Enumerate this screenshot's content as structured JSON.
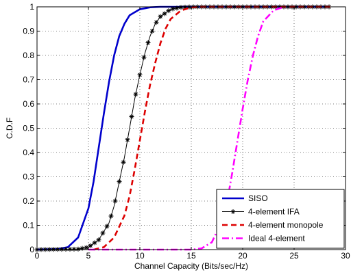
{
  "chart_data": {
    "type": "line",
    "xlabel": "Channel Capacity (Bits/sec/Hz)",
    "ylabel": "C.D.F",
    "xlim": [
      0,
      30
    ],
    "ylim": [
      0,
      1
    ],
    "xticks": [
      0,
      5,
      10,
      15,
      20,
      25,
      30
    ],
    "yticks": [
      0,
      0.1,
      0.2,
      0.3,
      0.4,
      0.5,
      0.6,
      0.7,
      0.8,
      0.9,
      1
    ],
    "grid": true,
    "legend_position": "bottom-right",
    "series": [
      {
        "name": "SISO",
        "color": "#0000cc",
        "style": "solid-thick",
        "points": [
          [
            0,
            0
          ],
          [
            2,
            0.002
          ],
          [
            3,
            0.01
          ],
          [
            4,
            0.05
          ],
          [
            5,
            0.17
          ],
          [
            5.5,
            0.28
          ],
          [
            6,
            0.42
          ],
          [
            6.5,
            0.56
          ],
          [
            7,
            0.69
          ],
          [
            7.5,
            0.8
          ],
          [
            8,
            0.88
          ],
          [
            8.5,
            0.93
          ],
          [
            9,
            0.965
          ],
          [
            10,
            0.99
          ],
          [
            11,
            0.998
          ],
          [
            12,
            1
          ],
          [
            28.5,
            1
          ]
        ]
      },
      {
        "name": "4-element IFA",
        "color": "#000000",
        "style": "solid-star",
        "points": [
          [
            0,
            0
          ],
          [
            4,
            0.002
          ],
          [
            5,
            0.01
          ],
          [
            6,
            0.04
          ],
          [
            7,
            0.11
          ],
          [
            7.5,
            0.18
          ],
          [
            8,
            0.28
          ],
          [
            8.5,
            0.38
          ],
          [
            9,
            0.5
          ],
          [
            9.5,
            0.62
          ],
          [
            10,
            0.72
          ],
          [
            10.5,
            0.81
          ],
          [
            11,
            0.88
          ],
          [
            11.5,
            0.93
          ],
          [
            12,
            0.96
          ],
          [
            13,
            0.99
          ],
          [
            14,
            0.998
          ],
          [
            15,
            1
          ],
          [
            28.5,
            1
          ]
        ]
      },
      {
        "name": "4-element monopole",
        "color": "#dd0000",
        "style": "dashed",
        "points": [
          [
            5.5,
            0
          ],
          [
            6.5,
            0.01
          ],
          [
            7.5,
            0.05
          ],
          [
            8.5,
            0.14
          ],
          [
            9,
            0.22
          ],
          [
            9.5,
            0.33
          ],
          [
            10,
            0.45
          ],
          [
            10.5,
            0.57
          ],
          [
            11,
            0.68
          ],
          [
            11.5,
            0.77
          ],
          [
            12,
            0.85
          ],
          [
            12.5,
            0.91
          ],
          [
            13,
            0.95
          ],
          [
            14,
            0.985
          ],
          [
            15,
            0.998
          ],
          [
            16,
            1
          ],
          [
            28.5,
            1
          ]
        ]
      },
      {
        "name": "Ideal 4-element",
        "color": "#ff00ff",
        "style": "dashdot",
        "points": [
          [
            5,
            0
          ],
          [
            15,
            0
          ],
          [
            16,
            0.005
          ],
          [
            17,
            0.03
          ],
          [
            18,
            0.12
          ],
          [
            18.5,
            0.2
          ],
          [
            19,
            0.32
          ],
          [
            19.5,
            0.45
          ],
          [
            20,
            0.58
          ],
          [
            20.5,
            0.7
          ],
          [
            21,
            0.8
          ],
          [
            21.5,
            0.88
          ],
          [
            22,
            0.94
          ],
          [
            23,
            0.985
          ],
          [
            24,
            1
          ]
        ]
      }
    ]
  }
}
